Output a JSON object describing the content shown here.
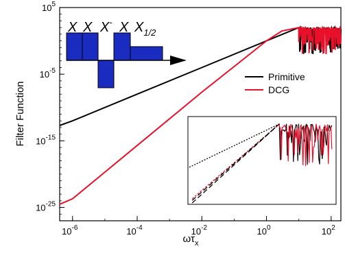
{
  "chart_data": {
    "type": "line",
    "xlabel_main": "ωτ",
    "xlabel_sub": "x",
    "ylabel": "Filter Function",
    "x_scale": "log",
    "y_scale": "log",
    "xlim": [
      4e-07,
      200
    ],
    "ylim": [
      1e-27,
      100000.0
    ],
    "x_ticks": [
      {
        "base": "10",
        "exp": "-6",
        "value": 1e-06
      },
      {
        "base": "10",
        "exp": "-4",
        "value": 0.0001
      },
      {
        "base": "10",
        "exp": "-2",
        "value": 0.01
      },
      {
        "base": "10",
        "exp": "0",
        "value": 1
      },
      {
        "base": "10",
        "exp": "2",
        "value": 100
      }
    ],
    "y_ticks": [
      {
        "base": "10",
        "exp": "5",
        "value": 100000.0
      },
      {
        "base": "10",
        "exp": "-5",
        "value": 1e-05
      },
      {
        "base": "10",
        "exp": "-15",
        "value": 1e-15
      },
      {
        "base": "10",
        "exp": "-25",
        "value": 1e-25
      }
    ],
    "series": [
      {
        "name": "Primitive",
        "color": "#000000",
        "x": [
          4e-07,
          1e-06,
          0.0001,
          0.01,
          1,
          10,
          200
        ],
        "y": [
          2e-13,
          1e-12,
          1e-08,
          0.0001,
          1,
          100,
          100
        ]
      },
      {
        "name": "DCG",
        "color": "#e8102a",
        "x": [
          4e-07,
          1e-06,
          0.0001,
          0.01,
          1,
          3,
          10,
          200
        ],
        "y": [
          3e-25,
          2e-24,
          2e-16,
          2e-08,
          1.0,
          30.0,
          100,
          100
        ]
      }
    ],
    "legend_position": "right",
    "inset_sequence": {
      "labels": [
        {
          "base": "X",
          "sup": "",
          "sub": ""
        },
        {
          "base": "X",
          "sup": "",
          "sub": ""
        },
        {
          "base": "X",
          "sup": "-",
          "sub": ""
        },
        {
          "base": "X",
          "sup": "",
          "sub": ""
        },
        {
          "base": "X",
          "sup": "",
          "sub": "1/2"
        }
      ],
      "pulse_color": "#1a2bbf",
      "pulse_levels": [
        1,
        1,
        -1,
        1,
        0.5
      ]
    }
  }
}
